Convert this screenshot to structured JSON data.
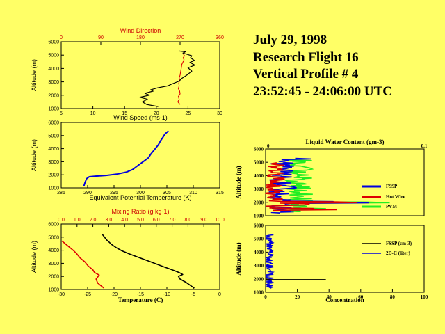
{
  "header": {
    "lines": [
      "July 29, 1998",
      "Research Flight 16",
      "Vertical Profile # 4",
      "23:52:45 - 24:06:00 UTC"
    ]
  },
  "colors": {
    "black": "#000000",
    "red": "#dd0000",
    "blue": "#0000dd",
    "green": "#22ee22",
    "background": "#ffff66"
  },
  "chart_data": [
    {
      "id": "wind",
      "type": "line",
      "ylabel": "Altitude (m)",
      "xlabel": "Wind Speed (ms-1)",
      "top_label": "Wind Direction",
      "xlim": [
        5,
        30
      ],
      "ylim": [
        1000,
        6000
      ],
      "xticks": [
        5,
        10,
        15,
        20,
        25,
        30
      ],
      "yticks": [
        1000,
        2000,
        3000,
        4000,
        5000,
        6000
      ],
      "top_xlim": [
        0,
        360
      ],
      "top_ticks": [
        0,
        90,
        180,
        270,
        360
      ],
      "series": [
        {
          "name": "Wind Speed",
          "color": "#000000",
          "axis": "bottom",
          "x": [
            20.3,
            18.5,
            17.8,
            18.6,
            17.4,
            18.9,
            18.2,
            19.5,
            19.1,
            20.2,
            21.8,
            22.5,
            23.6,
            24.0,
            24.8,
            25.6,
            25.0,
            26.1,
            25.3,
            26.0,
            25.4,
            25.6,
            24.9,
            24.2,
            24.6,
            23.6
          ],
          "y": [
            1150,
            1300,
            1500,
            1700,
            1850,
            2000,
            2150,
            2300,
            2400,
            2550,
            2700,
            2850,
            3050,
            3250,
            3500,
            3800,
            4050,
            4250,
            4450,
            4600,
            4800,
            4950,
            5050,
            5150,
            5250,
            5300
          ]
        },
        {
          "name": "Wind Direction",
          "color": "#dd0000",
          "axis": "top",
          "x": [
            270,
            265,
            268,
            266,
            270,
            269,
            266,
            268,
            267,
            269,
            268,
            270,
            271,
            272,
            273,
            274,
            277,
            279,
            277,
            280,
            278,
            279,
            280,
            281
          ],
          "y": [
            1300,
            1500,
            1700,
            1900,
            2100,
            2300,
            2500,
            2700,
            2900,
            3100,
            3300,
            3500,
            3700,
            3900,
            4100,
            4300,
            4500,
            4650,
            4800,
            4950,
            5050,
            5150,
            5250,
            5300
          ]
        }
      ]
    },
    {
      "id": "theta_e",
      "type": "line",
      "ylabel": "Altitude (m)",
      "xlabel": "Equivalent Potential Temperature (K)",
      "xlim": [
        285,
        315
      ],
      "ylim": [
        1000,
        6000
      ],
      "xticks": [
        285,
        290,
        295,
        300,
        305,
        310,
        315
      ],
      "yticks": [
        1000,
        2000,
        3000,
        4000,
        5000,
        6000
      ],
      "series": [
        {
          "name": "Theta-e",
          "color": "#0000dd",
          "x": [
            289.3,
            289.5,
            289.8,
            290.3,
            291.5,
            293.5,
            295.5,
            297.3,
            298.5,
            299.5,
            300.5,
            301.5,
            302.0,
            302.8,
            303.4,
            303.8,
            304.3,
            304.6,
            305.0,
            305.3
          ],
          "y": [
            1150,
            1400,
            1700,
            1850,
            1900,
            1950,
            2050,
            2200,
            2400,
            2700,
            3000,
            3300,
            3600,
            4000,
            4300,
            4600,
            4900,
            5100,
            5250,
            5350
          ]
        }
      ]
    },
    {
      "id": "temp_mix",
      "type": "line",
      "ylabel": "Altitude (m)",
      "xlabel": "Temperature (C)",
      "top_label": "Mixing Ratio (g kg-1)",
      "xlim": [
        -30,
        0
      ],
      "ylim": [
        1000,
        6000
      ],
      "xticks": [
        -30,
        -25,
        -20,
        -15,
        -10,
        -5,
        0
      ],
      "yticks": [
        1000,
        2000,
        3000,
        4000,
        5000,
        6000
      ],
      "top_xlim": [
        0,
        10
      ],
      "top_ticks": [
        0.0,
        1.0,
        2.0,
        3.0,
        4.0,
        5.0,
        6.0,
        7.0,
        8.0,
        9.0,
        10.0
      ],
      "series": [
        {
          "name": "Temperature",
          "color": "#000000",
          "axis": "bottom",
          "x": [
            -4.8,
            -5.5,
            -6.4,
            -7.5,
            -7.8,
            -7.0,
            -7.7,
            -9.0,
            -11.0,
            -13.0,
            -15.0,
            -17.0,
            -18.5,
            -19.6,
            -20.5,
            -21.0,
            -21.3,
            -21.6,
            -22.2
          ],
          "y": [
            1100,
            1300,
            1550,
            1800,
            2000,
            2150,
            2300,
            2500,
            2800,
            3100,
            3400,
            3700,
            3950,
            4200,
            4450,
            4650,
            4750,
            4900,
            5200
          ]
        },
        {
          "name": "Mixing Ratio",
          "color": "#dd0000",
          "axis": "top",
          "x": [
            2.7,
            2.5,
            2.3,
            2.2,
            2.4,
            2.1,
            2.0,
            1.7,
            1.5,
            1.2,
            1.0,
            0.8,
            0.6,
            0.4,
            0.2,
            0.05
          ],
          "y": [
            1100,
            1300,
            1500,
            1800,
            2100,
            2300,
            2500,
            2800,
            3100,
            3400,
            3700,
            3950,
            4150,
            4350,
            4550,
            4700
          ]
        }
      ]
    },
    {
      "id": "lwc",
      "type": "line",
      "title": "Liquid Water Content (gm-3)",
      "ylabel": "Altitude (m)",
      "xlim": [
        0,
        0.1
      ],
      "ylim": [
        1000,
        6000
      ],
      "top_ticks_labels": [
        "0",
        "0.1"
      ],
      "yticks": [
        1000,
        2000,
        3000,
        4000,
        5000,
        6000
      ],
      "legend": [
        "FSSP",
        "Hot Wire",
        "PVM"
      ],
      "series": [
        {
          "name": "FSSP",
          "color": "#0000dd"
        },
        {
          "name": "Hot Wire",
          "color": "#dd0000"
        },
        {
          "name": "PVM",
          "color": "#22ee22"
        }
      ]
    },
    {
      "id": "conc",
      "type": "line",
      "ylabel": "Altitude (m)",
      "xlabel": "Concentration",
      "xlim": [
        0,
        100
      ],
      "ylim": [
        1000,
        6000
      ],
      "xticks": [
        0,
        20,
        40,
        60,
        80,
        100
      ],
      "yticks": [
        1000,
        2000,
        3000,
        4000,
        5000,
        6000
      ],
      "legend": [
        "FSSP (cm-3)",
        "2D-C (liter)"
      ],
      "series": [
        {
          "name": "FSSP (cm-3)",
          "color": "#000000"
        },
        {
          "name": "2D-C (liter)",
          "color": "#0000dd"
        }
      ]
    }
  ]
}
